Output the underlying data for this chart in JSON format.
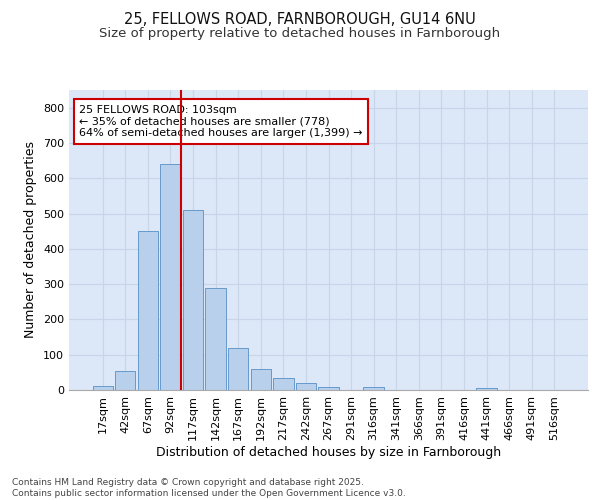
{
  "title1": "25, FELLOWS ROAD, FARNBOROUGH, GU14 6NU",
  "title2": "Size of property relative to detached houses in Farnborough",
  "xlabel": "Distribution of detached houses by size in Farnborough",
  "ylabel": "Number of detached properties",
  "bar_labels": [
    "17sqm",
    "42sqm",
    "67sqm",
    "92sqm",
    "117sqm",
    "142sqm",
    "167sqm",
    "192sqm",
    "217sqm",
    "242sqm",
    "267sqm",
    "291sqm",
    "316sqm",
    "341sqm",
    "366sqm",
    "391sqm",
    "416sqm",
    "441sqm",
    "466sqm",
    "491sqm",
    "516sqm"
  ],
  "bar_values": [
    10,
    55,
    450,
    640,
    510,
    290,
    120,
    60,
    35,
    20,
    8,
    0,
    8,
    0,
    0,
    0,
    0,
    5,
    0,
    0,
    0
  ],
  "bar_color": "#b8d0ec",
  "bar_edgecolor": "#6699cc",
  "vline_color": "#cc0000",
  "annotation_text": "25 FELLOWS ROAD: 103sqm\n← 35% of detached houses are smaller (778)\n64% of semi-detached houses are larger (1,399) →",
  "annotation_box_facecolor": "#ffffff",
  "annotation_box_edgecolor": "#cc0000",
  "ylim": [
    0,
    850
  ],
  "yticks": [
    0,
    100,
    200,
    300,
    400,
    500,
    600,
    700,
    800
  ],
  "grid_color": "#c8d4e8",
  "bg_color": "#dce8f8",
  "footnote": "Contains HM Land Registry data © Crown copyright and database right 2025.\nContains public sector information licensed under the Open Government Licence v3.0.",
  "title_fontsize": 10.5,
  "subtitle_fontsize": 9.5,
  "label_fontsize": 9,
  "tick_fontsize": 8,
  "footnote_fontsize": 6.5,
  "annot_fontsize": 8
}
